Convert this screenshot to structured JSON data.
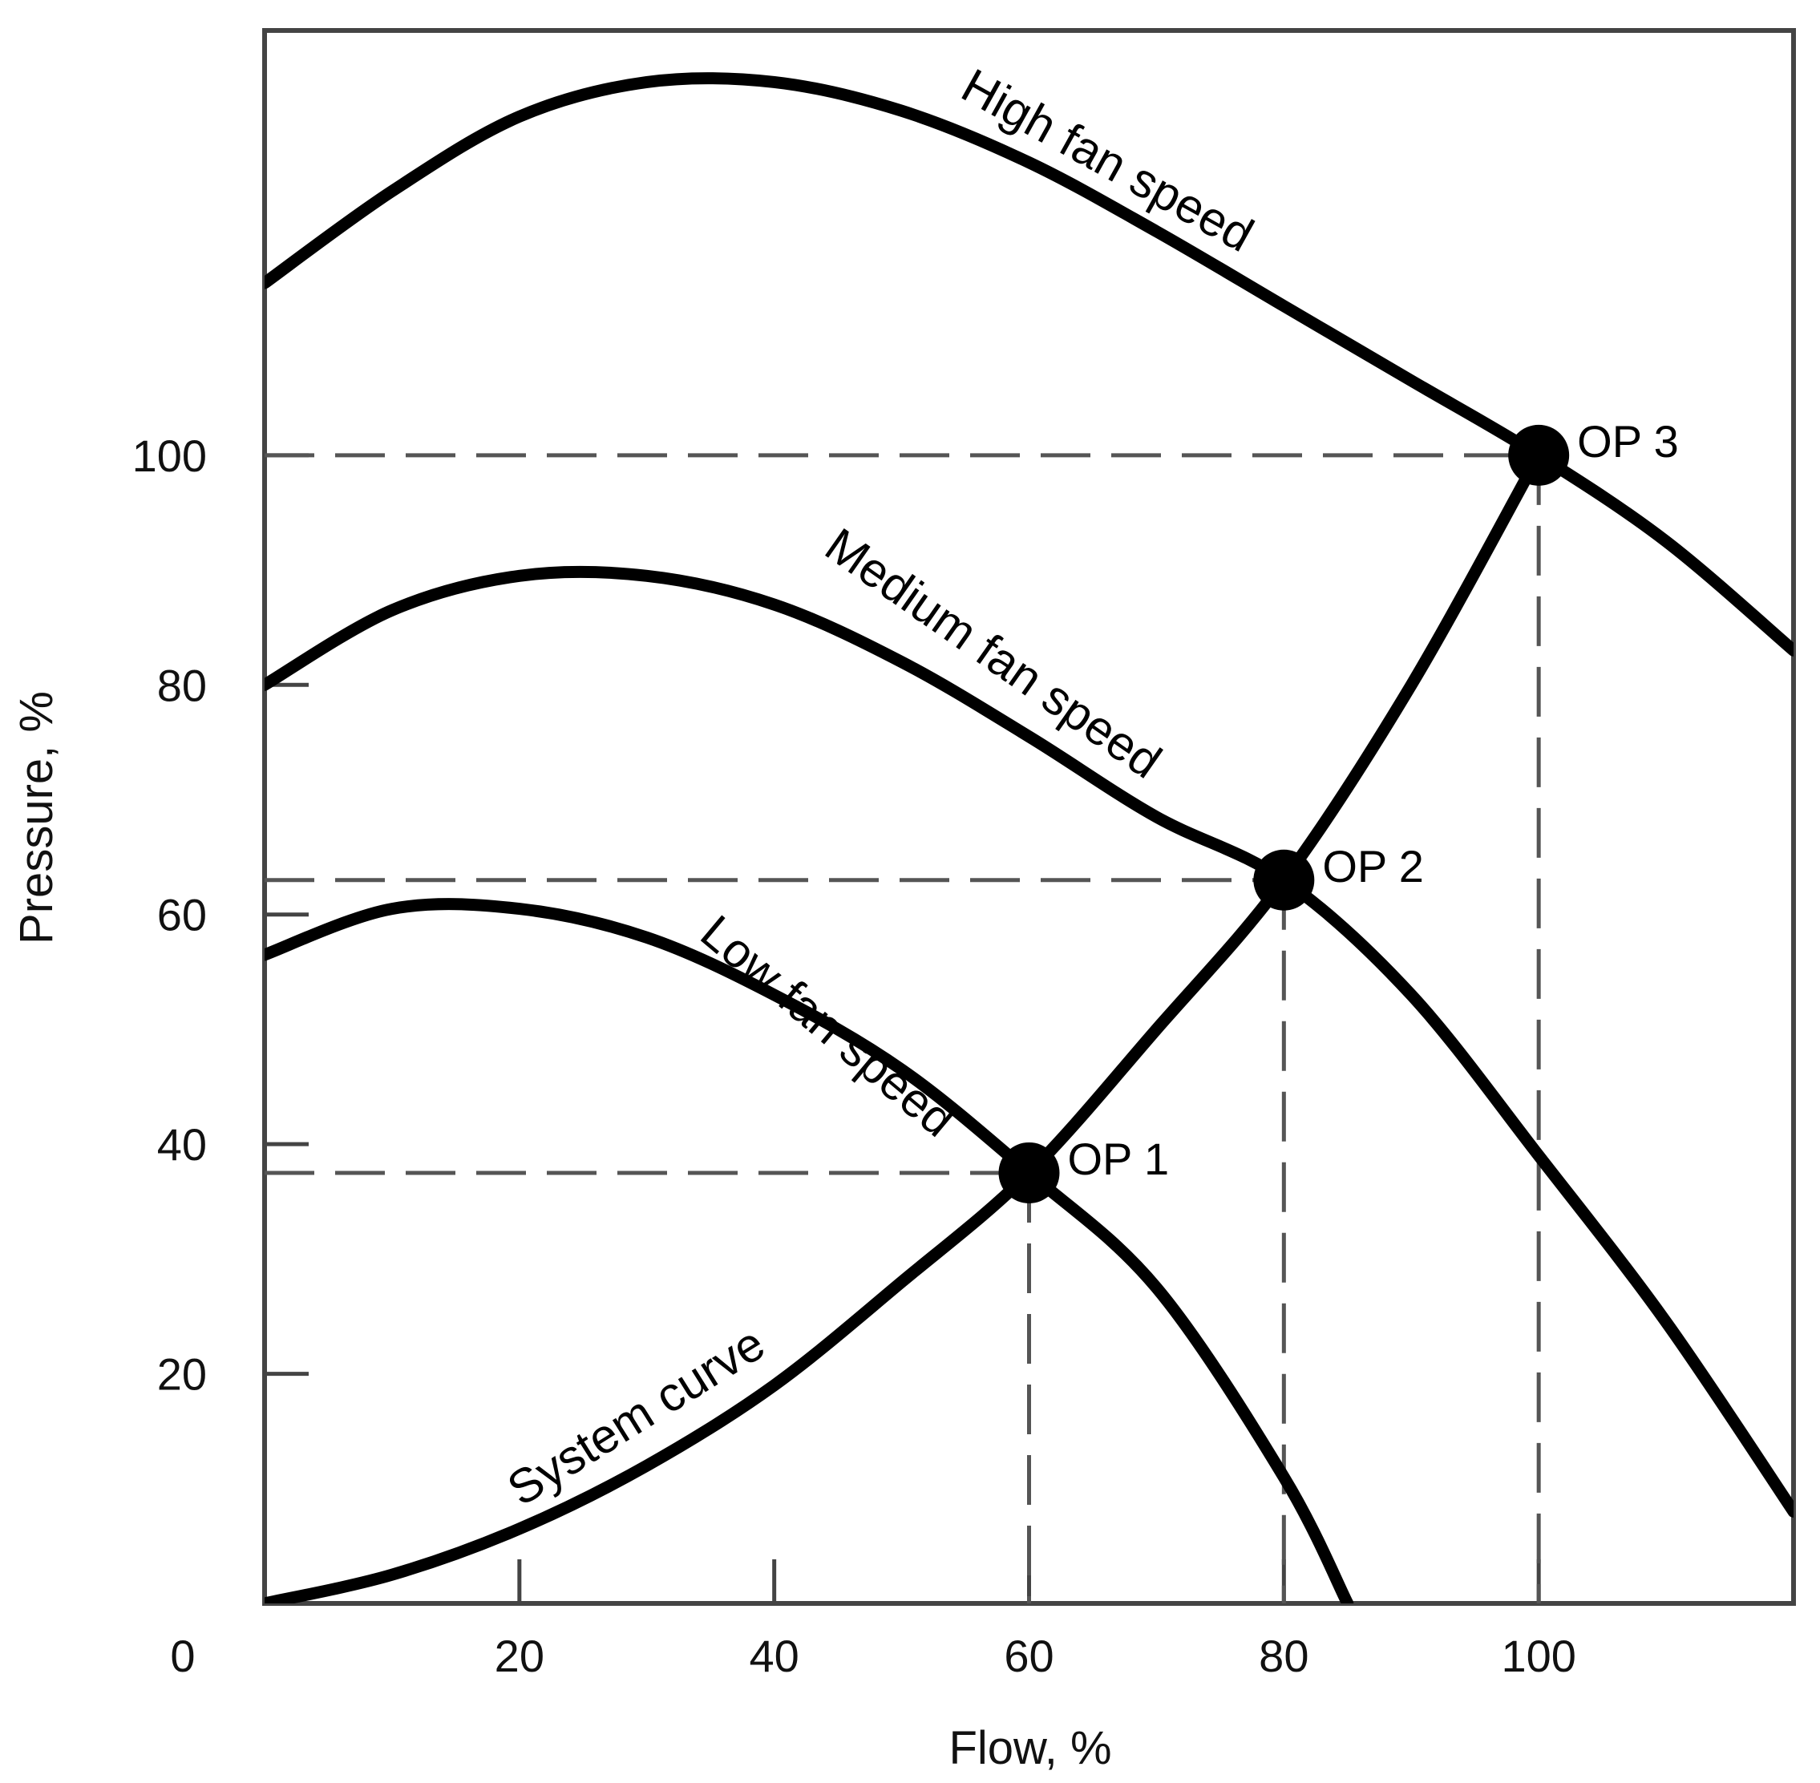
{
  "chart_data": {
    "type": "line",
    "title": "",
    "xlabel": "Flow, %",
    "ylabel": "Pressure, %",
    "xlim": [
      0,
      120
    ],
    "ylim": [
      0,
      137
    ],
    "x_ticks": [
      "0",
      "20",
      "40",
      "60",
      "80",
      "100"
    ],
    "y_ticks": [
      "20",
      "40",
      "60",
      "80",
      "100"
    ],
    "grid": false,
    "series": [
      {
        "name": "High fan speed",
        "label": "High fan speed",
        "x": [
          0,
          10,
          20,
          30,
          40,
          50,
          60,
          70,
          80,
          90,
          100,
          110,
          120
        ],
        "y": [
          115,
          123,
          129.5,
          132.5,
          132.5,
          130,
          125.5,
          119.5,
          113,
          106.5,
          100,
          92.5,
          83
        ]
      },
      {
        "name": "Medium fan speed",
        "label": "Medium fan speed",
        "x": [
          0,
          10,
          20,
          30,
          40,
          50,
          60,
          70,
          80,
          90,
          100,
          110,
          120
        ],
        "y": [
          80,
          86.5,
          89.5,
          89.5,
          87,
          82,
          75.5,
          68.5,
          63,
          53,
          39,
          24.5,
          8
        ]
      },
      {
        "name": "Low fan speed",
        "label": "Low fan speed",
        "x": [
          0,
          10,
          20,
          30,
          40,
          50,
          60,
          70,
          80,
          85
        ],
        "y": [
          56.5,
          60.5,
          60.5,
          58,
          53,
          46.5,
          37.5,
          27.5,
          11,
          0
        ]
      },
      {
        "name": "System curve",
        "label": "System curve",
        "x": [
          0,
          10,
          20,
          30,
          40,
          50,
          60,
          70,
          80,
          90,
          100
        ],
        "y": [
          0,
          2.5,
          6.5,
          12,
          19,
          28,
          37.5,
          50,
          63,
          80,
          100
        ]
      }
    ],
    "operating_points": [
      {
        "label": "OP 1",
        "x": 60,
        "y": 37.5
      },
      {
        "label": "OP 2",
        "x": 80,
        "y": 63
      },
      {
        "label": "OP 3",
        "x": 100,
        "y": 100
      }
    ]
  }
}
